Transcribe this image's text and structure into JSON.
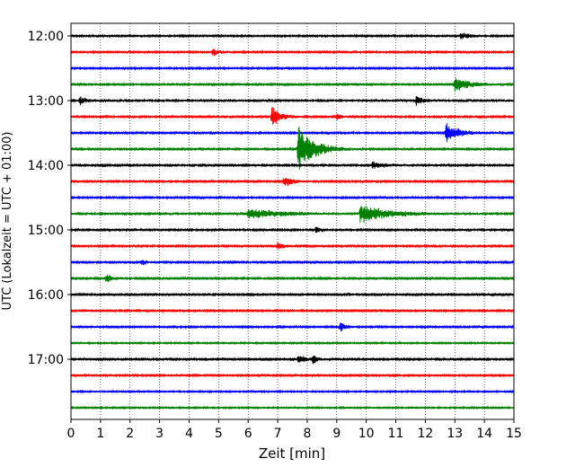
{
  "chart_data": {
    "type": "line",
    "title": "",
    "xlabel": "Zeit  [min]",
    "ylabel": "UTC (Lokalzeit = UTC + 01:00)",
    "xlim": [
      0,
      15
    ],
    "x_ticks": [
      "0",
      "1",
      "2",
      "3",
      "4",
      "5",
      "6",
      "7",
      "8",
      "9",
      "10",
      "11",
      "12",
      "13",
      "14",
      "15"
    ],
    "y_ticks": [
      "12:00",
      "13:00",
      "14:00",
      "15:00",
      "16:00",
      "17:00"
    ],
    "grid": "vertical dotted",
    "trace_interval_minutes": 15,
    "trace_colors": [
      "#000000",
      "#ff0000",
      "#0000ff",
      "#008000"
    ],
    "series": [
      {
        "start": "12:00",
        "color": "#000000",
        "noise": 0.7,
        "events": [
          {
            "t": 13.2,
            "amp": 1.1,
            "dur": 0.8
          }
        ]
      },
      {
        "start": "12:15",
        "color": "#ff0000",
        "noise": 0.7,
        "events": [
          {
            "t": 4.8,
            "amp": 1.2,
            "dur": 0.6
          }
        ]
      },
      {
        "start": "12:30",
        "color": "#0000ff",
        "noise": 0.7,
        "events": []
      },
      {
        "start": "12:45",
        "color": "#008000",
        "noise": 0.7,
        "events": [
          {
            "t": 13.0,
            "amp": 2.2,
            "dur": 1.2
          }
        ]
      },
      {
        "start": "13:00",
        "color": "#000000",
        "noise": 1.0,
        "events": [
          {
            "t": 0.3,
            "amp": 1.3,
            "dur": 0.5
          },
          {
            "t": 11.7,
            "amp": 1.5,
            "dur": 0.5
          }
        ]
      },
      {
        "start": "13:15",
        "color": "#ff0000",
        "noise": 0.9,
        "events": [
          {
            "t": 6.8,
            "amp": 3.5,
            "dur": 0.6
          },
          {
            "t": 9.0,
            "amp": 1.2,
            "dur": 0.3
          }
        ]
      },
      {
        "start": "13:30",
        "color": "#0000ff",
        "noise": 0.8,
        "events": [
          {
            "t": 12.7,
            "amp": 3.0,
            "dur": 1.0
          }
        ]
      },
      {
        "start": "13:45",
        "color": "#008000",
        "noise": 0.8,
        "events": [
          {
            "t": 7.7,
            "amp": 7.0,
            "dur": 1.2
          }
        ]
      },
      {
        "start": "14:00",
        "color": "#000000",
        "noise": 0.9,
        "events": [
          {
            "t": 10.2,
            "amp": 1.2,
            "dur": 1.0
          }
        ]
      },
      {
        "start": "14:15",
        "color": "#ff0000",
        "noise": 0.8,
        "events": [
          {
            "t": 7.2,
            "amp": 1.8,
            "dur": 0.7
          }
        ]
      },
      {
        "start": "14:30",
        "color": "#0000ff",
        "noise": 0.7,
        "events": []
      },
      {
        "start": "14:45",
        "color": "#008000",
        "noise": 1.0,
        "events": [
          {
            "t": 6.0,
            "amp": 1.5,
            "dur": 2.5
          },
          {
            "t": 9.8,
            "amp": 2.8,
            "dur": 2.0
          }
        ]
      },
      {
        "start": "15:00",
        "color": "#000000",
        "noise": 0.9,
        "events": [
          {
            "t": 8.3,
            "amp": 1.3,
            "dur": 0.4
          }
        ]
      },
      {
        "start": "15:15",
        "color": "#ff0000",
        "noise": 0.8,
        "events": [
          {
            "t": 7.0,
            "amp": 1.2,
            "dur": 0.5
          }
        ]
      },
      {
        "start": "15:30",
        "color": "#0000ff",
        "noise": 0.8,
        "events": [
          {
            "t": 2.4,
            "amp": 1.2,
            "dur": 0.3
          }
        ]
      },
      {
        "start": "15:45",
        "color": "#008000",
        "noise": 0.8,
        "events": [
          {
            "t": 1.2,
            "amp": 1.4,
            "dur": 0.5
          }
        ]
      },
      {
        "start": "16:00",
        "color": "#000000",
        "noise": 0.8,
        "events": []
      },
      {
        "start": "16:15",
        "color": "#ff0000",
        "noise": 0.7,
        "events": []
      },
      {
        "start": "16:30",
        "color": "#0000ff",
        "noise": 0.7,
        "events": [
          {
            "t": 9.1,
            "amp": 1.6,
            "dur": 0.5
          }
        ]
      },
      {
        "start": "16:45",
        "color": "#008000",
        "noise": 0.6,
        "events": []
      },
      {
        "start": "17:00",
        "color": "#000000",
        "noise": 0.8,
        "events": [
          {
            "t": 7.7,
            "amp": 1.6,
            "dur": 0.5
          },
          {
            "t": 8.2,
            "amp": 1.5,
            "dur": 0.3
          }
        ]
      },
      {
        "start": "17:15",
        "color": "#ff0000",
        "noise": 0.7,
        "events": []
      },
      {
        "start": "17:30",
        "color": "#0000ff",
        "noise": 0.6,
        "events": []
      },
      {
        "start": "17:45",
        "color": "#008000",
        "noise": 0.6,
        "events": []
      }
    ]
  }
}
